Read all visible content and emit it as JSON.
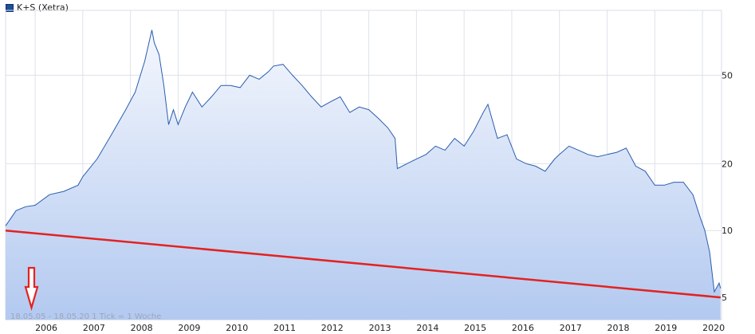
{
  "legend": {
    "label": "K+S (Xetra)",
    "color": "#1f4e9a"
  },
  "range_text": "18.05.05 - 18.05.20   1 Tick = 1 Woche",
  "chart_data": {
    "type": "area",
    "title": "",
    "series": [
      {
        "name": "K+S (Xetra)",
        "color": "#2a5db0",
        "x": [
          2005.38,
          2005.6,
          2005.8,
          2006.0,
          2006.3,
          2006.6,
          2006.9,
          2007.0,
          2007.3,
          2007.6,
          2007.9,
          2008.1,
          2008.3,
          2008.45,
          2008.5,
          2008.6,
          2008.7,
          2008.8,
          2008.9,
          2009.0,
          2009.15,
          2009.3,
          2009.5,
          2009.7,
          2009.9,
          2010.1,
          2010.3,
          2010.5,
          2010.7,
          2010.9,
          2011.0,
          2011.2,
          2011.4,
          2011.6,
          2011.8,
          2012.0,
          2012.2,
          2012.4,
          2012.6,
          2012.8,
          2013.0,
          2013.2,
          2013.4,
          2013.55,
          2013.6,
          2013.8,
          2014.0,
          2014.2,
          2014.4,
          2014.6,
          2014.8,
          2015.0,
          2015.2,
          2015.4,
          2015.5,
          2015.7,
          2015.9,
          2016.1,
          2016.3,
          2016.5,
          2016.7,
          2016.9,
          2017.0,
          2017.2,
          2017.4,
          2017.6,
          2017.8,
          2018.0,
          2018.2,
          2018.4,
          2018.6,
          2018.8,
          2019.0,
          2019.2,
          2019.4,
          2019.6,
          2019.8,
          2019.95,
          2020.05,
          2020.15,
          2020.25,
          2020.35,
          2020.38
        ],
        "values": [
          10.5,
          12.3,
          12.8,
          13.0,
          14.5,
          15.0,
          16.0,
          17.5,
          21.0,
          27.0,
          35.0,
          42.0,
          58.0,
          80.0,
          70.0,
          62.0,
          45.0,
          30.0,
          35.0,
          30.0,
          36.0,
          42.0,
          36.0,
          40.0,
          45.0,
          45.0,
          44.0,
          50.0,
          48.0,
          52.0,
          55.0,
          56.0,
          50.0,
          45.0,
          40.0,
          36.0,
          38.0,
          40.0,
          34.0,
          36.0,
          35.0,
          32.0,
          29.0,
          26.0,
          19.0,
          20.0,
          21.0,
          22.0,
          24.0,
          23.0,
          26.0,
          24.0,
          28.0,
          34.0,
          37.0,
          26.0,
          27.0,
          21.0,
          20.0,
          19.5,
          18.5,
          21.0,
          22.0,
          24.0,
          23.0,
          22.0,
          21.5,
          22.0,
          22.5,
          23.5,
          19.5,
          18.5,
          16.0,
          16.0,
          16.5,
          16.5,
          14.5,
          11.5,
          10.0,
          8.0,
          5.3,
          5.8,
          5.5
        ]
      },
      {
        "name": "",
        "color": "#e32220",
        "x": [
          2005.38,
          2020.38
        ],
        "values": [
          10.0,
          5.0
        ]
      }
    ],
    "xlim": [
      2005.38,
      2020.4
    ],
    "ylim": [
      3.97,
      98
    ],
    "yscale": "log",
    "x_ticks": [
      "2006",
      "2007",
      "2008",
      "2009",
      "2010",
      "2011",
      "2012",
      "2013",
      "2014",
      "2015",
      "2016",
      "2017",
      "2018",
      "2019",
      "2020"
    ],
    "y_ticks": [
      "5",
      "10",
      "20",
      "50"
    ],
    "grid": true,
    "legend_position": "top-left",
    "annotation": "red-arrow-down"
  }
}
